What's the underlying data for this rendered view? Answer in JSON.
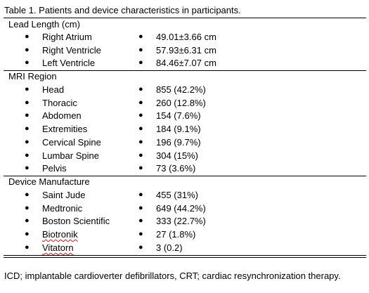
{
  "caption": "Table 1. Patients and device characteristics in participants.",
  "sections": [
    {
      "title": "Lead Length (cm)",
      "rows": [
        {
          "label": "Right Atrium",
          "value": "49.01±3.66 cm"
        },
        {
          "label": "Right Ventricle",
          "value": "57.93±6.31 cm"
        },
        {
          "label": "Left Ventricle",
          "value": "84.46±7.07 cm"
        }
      ]
    },
    {
      "title": "MRI Region",
      "rows": [
        {
          "label": "Head",
          "value": "855 (42.2%)"
        },
        {
          "label": "Thoracic",
          "value": "260 (12.8%)"
        },
        {
          "label": "Abdomen",
          "value": "154 (7.6%)"
        },
        {
          "label": "Extremities",
          "value": "184 (9.1%)"
        },
        {
          "label": "Cervical Spine",
          "value": "196 (9.7%)"
        },
        {
          "label": "Lumbar Spine",
          "value": "304 (15%)"
        },
        {
          "label": "Pelvis",
          "value": "73 (3.6%)"
        }
      ]
    },
    {
      "title": "Device Manufacture",
      "rows": [
        {
          "label": "Saint Jude",
          "value": "455 (31%)"
        },
        {
          "label": "Medtronic",
          "value": "649 (44.2%)"
        },
        {
          "label": "Boston Scientific",
          "value": "333 (22.7%)"
        },
        {
          "label": "Biotronik",
          "value": "27 (1.8%)",
          "spellcheck": true
        },
        {
          "label": "Vitatorn",
          "value": "3 (0.2)",
          "spellcheck": true
        }
      ]
    }
  ],
  "bullet_glyph": "●",
  "footnote": "ICD; implantable cardioverter defibrillators, CRT; cardiac resynchronization therapy.",
  "colors": {
    "text": "#000000",
    "rule": "#000000",
    "spellcheck": "#d11a1a"
  }
}
